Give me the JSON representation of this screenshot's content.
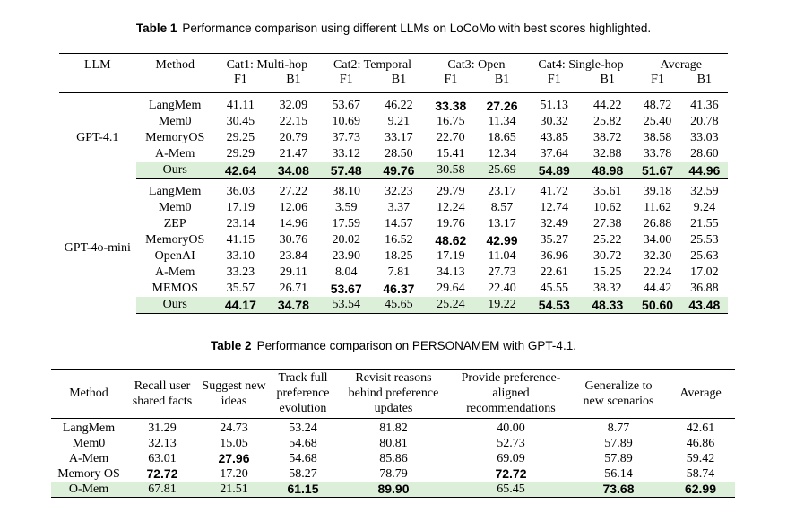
{
  "table1": {
    "label": "Table 1",
    "caption": "Performance comparison using different LLMs on LoCoMo with best scores highlighted.",
    "col_llm": "LLM",
    "col_method": "Method",
    "groups": [
      "Cat1: Multi-hop",
      "Cat2: Temporal",
      "Cat3: Open",
      "Cat4: Single-hop",
      "Average"
    ],
    "sub": [
      "F1",
      "B1"
    ],
    "blocks": [
      {
        "llm": "GPT-4.1",
        "rows": [
          {
            "method": "LangMem",
            "v": [
              "41.11",
              "32.09",
              "53.67",
              "46.22",
              "33.38",
              "27.26",
              "51.13",
              "44.22",
              "48.72",
              "41.36"
            ],
            "bold": [
              4,
              5
            ],
            "hl": false
          },
          {
            "method": "Mem0",
            "v": [
              "30.45",
              "22.15",
              "10.69",
              "9.21",
              "16.75",
              "11.34",
              "30.32",
              "25.82",
              "25.40",
              "20.78"
            ],
            "bold": [],
            "hl": false
          },
          {
            "method": "MemoryOS",
            "v": [
              "29.25",
              "20.79",
              "37.73",
              "33.17",
              "22.70",
              "18.65",
              "43.85",
              "38.72",
              "38.58",
              "33.03"
            ],
            "bold": [],
            "hl": false
          },
          {
            "method": "A-Mem",
            "v": [
              "29.29",
              "21.47",
              "33.12",
              "28.50",
              "15.41",
              "12.34",
              "37.64",
              "32.88",
              "33.78",
              "28.60"
            ],
            "bold": [],
            "hl": false
          },
          {
            "method": "Ours",
            "v": [
              "42.64",
              "34.08",
              "57.48",
              "49.76",
              "30.58",
              "25.69",
              "54.89",
              "48.98",
              "51.67",
              "44.96"
            ],
            "bold": [
              0,
              1,
              2,
              3,
              6,
              7,
              8,
              9
            ],
            "hl": true
          }
        ]
      },
      {
        "llm": "GPT-4o-mini",
        "rows": [
          {
            "method": "LangMem",
            "v": [
              "36.03",
              "27.22",
              "38.10",
              "32.23",
              "29.79",
              "23.17",
              "41.72",
              "35.61",
              "39.18",
              "32.59"
            ],
            "bold": [],
            "hl": false
          },
          {
            "method": "Mem0",
            "v": [
              "17.19",
              "12.06",
              "3.59",
              "3.37",
              "12.24",
              "8.57",
              "12.74",
              "10.62",
              "11.62",
              "9.24"
            ],
            "bold": [],
            "hl": false
          },
          {
            "method": "ZEP",
            "v": [
              "23.14",
              "14.96",
              "17.59",
              "14.57",
              "19.76",
              "13.17",
              "32.49",
              "27.38",
              "26.88",
              "21.55"
            ],
            "bold": [],
            "hl": false
          },
          {
            "method": "MemoryOS",
            "v": [
              "41.15",
              "30.76",
              "20.02",
              "16.52",
              "48.62",
              "42.99",
              "35.27",
              "25.22",
              "34.00",
              "25.53"
            ],
            "bold": [
              4,
              5
            ],
            "hl": false
          },
          {
            "method": "OpenAI",
            "v": [
              "33.10",
              "23.84",
              "23.90",
              "18.25",
              "17.19",
              "11.04",
              "36.96",
              "30.72",
              "32.30",
              "25.63"
            ],
            "bold": [],
            "hl": false
          },
          {
            "method": "A-Mem",
            "v": [
              "33.23",
              "29.11",
              "8.04",
              "7.81",
              "34.13",
              "27.73",
              "22.61",
              "15.25",
              "22.24",
              "17.02"
            ],
            "bold": [],
            "hl": false
          },
          {
            "method": "MEMOS",
            "v": [
              "35.57",
              "26.71",
              "53.67",
              "46.37",
              "29.64",
              "22.40",
              "45.55",
              "38.32",
              "44.42",
              "36.88"
            ],
            "bold": [
              2,
              3
            ],
            "hl": false
          },
          {
            "method": "Ours",
            "v": [
              "44.17",
              "34.78",
              "53.54",
              "45.65",
              "25.24",
              "19.22",
              "54.53",
              "48.33",
              "50.60",
              "43.48"
            ],
            "bold": [
              0,
              1,
              6,
              7,
              8,
              9
            ],
            "hl": true
          }
        ]
      }
    ]
  },
  "table2": {
    "label": "Table 2",
    "caption": "Performance comparison on PERSONAMEM with GPT-4.1.",
    "headers": [
      "Method",
      "Recall user shared facts",
      "Suggest new ideas",
      "Track full preference evolution",
      "Revisit reasons behind preference updates",
      "Provide preference-aligned recommendations",
      "Generalize to new scenarios",
      "Average"
    ],
    "rows": [
      {
        "method": "LangMem",
        "v": [
          "31.29",
          "24.73",
          "53.24",
          "81.82",
          "40.00",
          "8.77",
          "42.61"
        ],
        "bold": [],
        "hl": false
      },
      {
        "method": "Mem0",
        "v": [
          "32.13",
          "15.05",
          "54.68",
          "80.81",
          "52.73",
          "57.89",
          "46.86"
        ],
        "bold": [],
        "hl": false
      },
      {
        "method": "A-Mem",
        "v": [
          "63.01",
          "27.96",
          "54.68",
          "85.86",
          "69.09",
          "57.89",
          "59.42"
        ],
        "bold": [
          1
        ],
        "hl": false
      },
      {
        "method": "Memory OS",
        "v": [
          "72.72",
          "17.20",
          "58.27",
          "78.79",
          "72.72",
          "56.14",
          "58.74"
        ],
        "bold": [
          0,
          4
        ],
        "hl": false
      },
      {
        "method": "O-Mem",
        "v": [
          "67.81",
          "21.51",
          "61.15",
          "89.90",
          "65.45",
          "73.68",
          "62.99"
        ],
        "bold": [
          2,
          3,
          5,
          6
        ],
        "hl": true
      }
    ]
  }
}
